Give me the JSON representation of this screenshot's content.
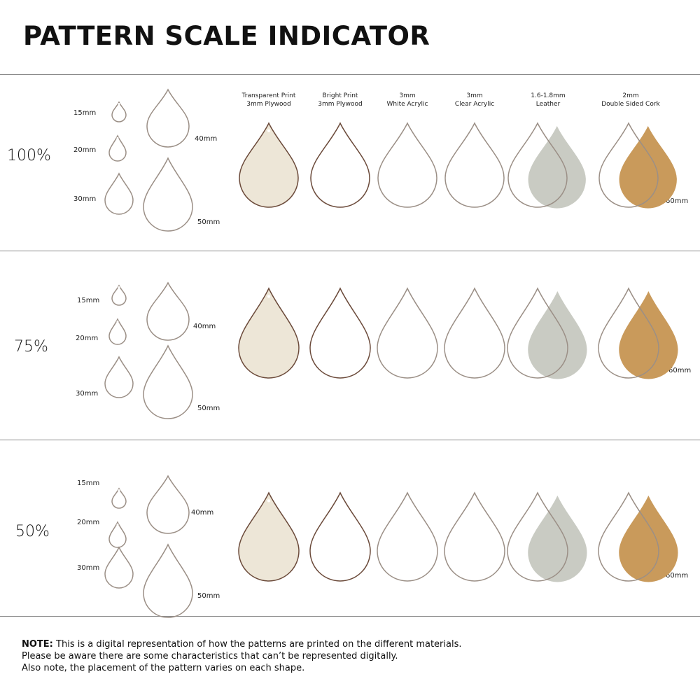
{
  "title": "PATTERN SCALE INDICATOR",
  "materials": [
    {
      "line1": "Transparent Print",
      "line2": "3mm Plywood"
    },
    {
      "line1": "Bright Print",
      "line2": "3mm Plywood"
    },
    {
      "line1": "3mm",
      "line2": "White Acrylic"
    },
    {
      "line1": "3mm",
      "line2": "Clear Acrylic"
    },
    {
      "line1": "1.6-1.8mm",
      "line2": "Leather"
    },
    {
      "line1": "2mm",
      "line2": "Double Sided Cork"
    }
  ],
  "rows": [
    {
      "scale": "100%",
      "sizes": {
        "s15": "15mm",
        "s20": "20mm",
        "s30": "30mm",
        "s40": "40mm",
        "s50": "50mm",
        "s60": "60mm"
      }
    },
    {
      "scale": "75%",
      "sizes": {
        "s15": "15mm",
        "s20": "20mm",
        "s30": "30mm",
        "s40": "40mm",
        "s50": "50mm",
        "s60": "60mm"
      }
    },
    {
      "scale": "50%",
      "sizes": {
        "s15": "15mm",
        "s20": "20mm",
        "s30": "30mm",
        "s40": "40mm",
        "s50": "50mm",
        "s60": "60mm"
      }
    }
  ],
  "note": {
    "label": "NOTE:",
    "line1": " This is a digital representation of how the patterns are printed on the different materials.",
    "line2": "Please be aware there are some characteristics that can’t be represented digitally.",
    "line3": "Also note, the placement of the pattern varies on each shape."
  },
  "colors": {
    "pink": "#e23aa4",
    "blue": "#2f62c9",
    "green": "#2fb457",
    "yellow": "#f4c21f",
    "leather": "#c9cbc3",
    "cork": "#c99a5b",
    "plywood": "#d8c7a6"
  }
}
